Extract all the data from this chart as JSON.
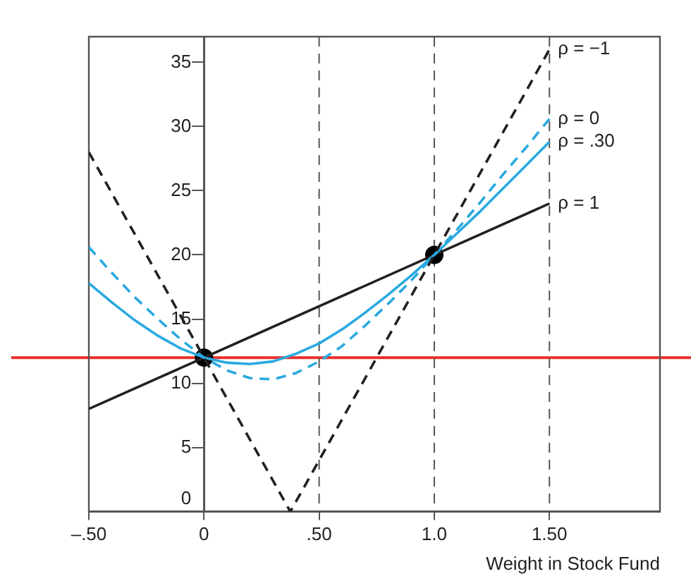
{
  "chart_data": {
    "type": "line",
    "xlabel": "Weight in Stock Fund",
    "xlim": [
      -0.5,
      1.98
    ],
    "ylim": [
      0,
      37
    ],
    "xticks": [
      {
        "value": -0.5,
        "label": "–.50"
      },
      0,
      {
        "value": 0.5,
        "label": ".50"
      },
      {
        "value": 1,
        "label": "1.0"
      },
      {
        "value": 1.5,
        "label": "1.50"
      }
    ],
    "yticks": [
      0,
      5,
      10,
      15,
      20,
      25,
      30,
      35
    ],
    "grid": false,
    "legend": false,
    "marker": "none",
    "series": [
      {
        "name": "ρ = −1",
        "color": "#231f20",
        "line_style": "dashed",
        "x": [
          -0.5,
          0.375,
          1.5
        ],
        "values": [
          28,
          0,
          36
        ]
      },
      {
        "name": "ρ = 0",
        "color": "#29a9e0",
        "line_style": "dashed",
        "x": [
          -0.5,
          -0.4,
          -0.3,
          -0.2,
          -0.1,
          0,
          0.1,
          0.2,
          0.3,
          0.4,
          0.5,
          0.6,
          0.7,
          0.8,
          0.9,
          1,
          1.1,
          1.2,
          1.3,
          1.4,
          1.5
        ],
        "values": [
          20.6,
          18.6,
          16.7,
          15.0,
          13.4,
          12,
          11.0,
          10.4,
          10.3,
          10.8,
          11.7,
          12.9,
          14.5,
          16.2,
          18.0,
          20,
          22.0,
          24.1,
          26.3,
          28.4,
          30.6
        ]
      },
      {
        "name": "ρ = .30",
        "color": "#29a9e0",
        "line_style": "solid",
        "x": [
          -0.5,
          -0.4,
          -0.3,
          -0.2,
          -0.1,
          0,
          0.1,
          0.2,
          0.3,
          0.4,
          0.5,
          0.6,
          0.7,
          0.8,
          0.9,
          1,
          1.1,
          1.2,
          1.3,
          1.4,
          1.5
        ],
        "values": [
          17.8,
          16.3,
          14.9,
          13.7,
          12.7,
          12,
          11.6,
          11.5,
          11.7,
          12.3,
          13.1,
          14.2,
          15.5,
          16.9,
          18.4,
          20,
          21.7,
          23.4,
          25.2,
          27.0,
          28.8
        ]
      },
      {
        "name": "ρ = 1",
        "color": "#231f20",
        "line_style": "solid",
        "x": [
          -0.5,
          1.5
        ],
        "values": [
          8,
          24
        ]
      },
      {
        "type": "scatter",
        "color": "#000000",
        "marker": "circle",
        "x": [
          0,
          1
        ],
        "values": [
          12,
          20
        ]
      }
    ],
    "ref_lines": [
      {
        "axis": "y",
        "value": 12,
        "color": "#e8302a",
        "line_style": "solid"
      },
      {
        "axis": "x",
        "value": 0.5,
        "color": "#555555",
        "line_style": "dashed"
      },
      {
        "axis": "x",
        "value": 1,
        "color": "#555555",
        "line_style": "dashed"
      },
      {
        "axis": "x",
        "value": 1.5,
        "color": "#555555",
        "line_style": "dashed"
      }
    ]
  }
}
